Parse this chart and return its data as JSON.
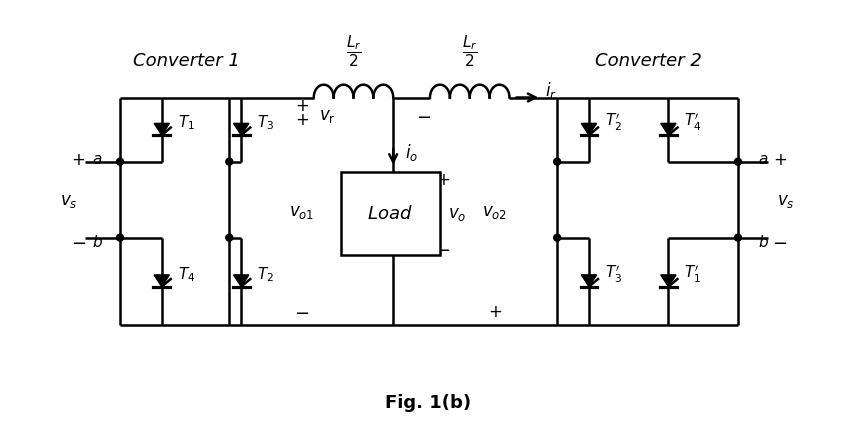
{
  "background": "#ffffff",
  "converter1_label": "Converter 1",
  "converter2_label": "Converter 2",
  "fig_label": "Fig. 1(b)",
  "lw": 1.8,
  "fig_width": 8.56,
  "fig_height": 4.27,
  "dpi": 100
}
